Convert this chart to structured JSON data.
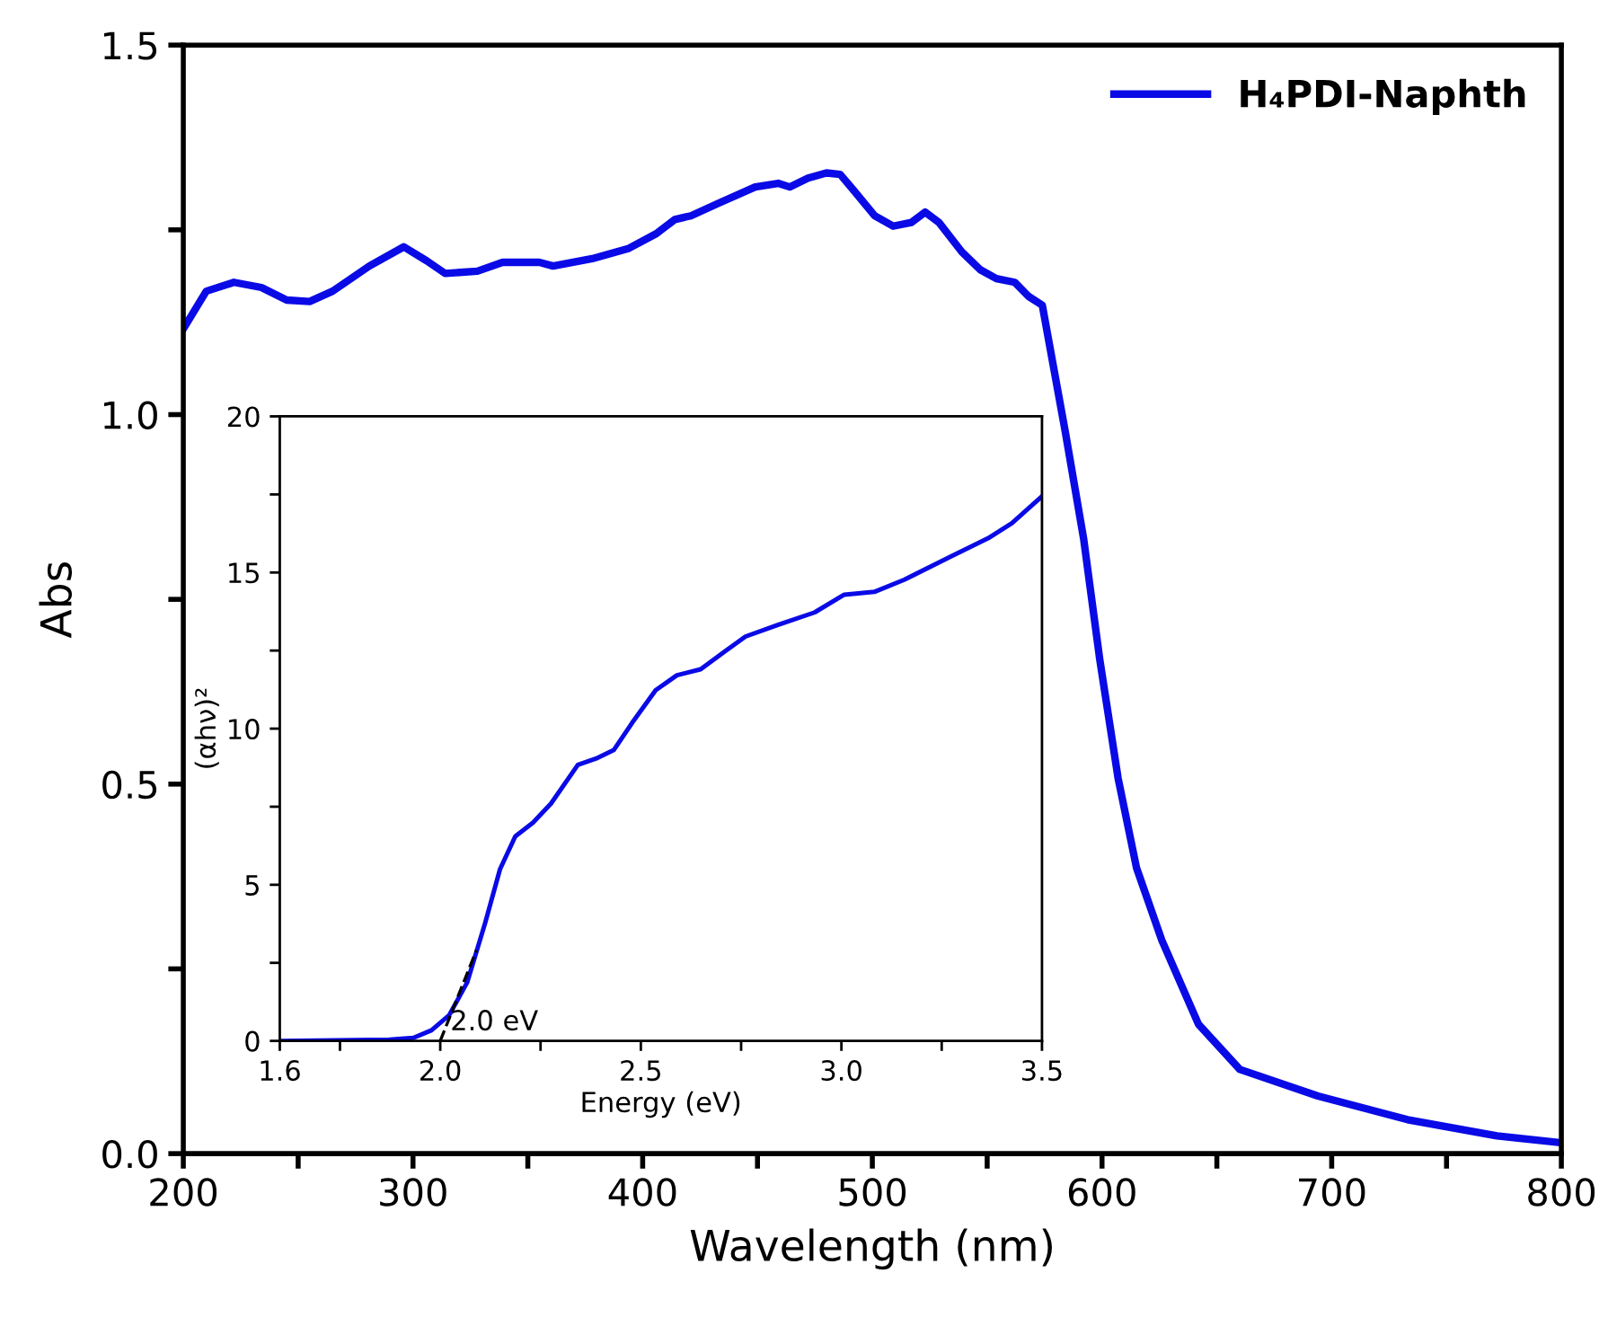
{
  "chart_data": [
    {
      "type": "line",
      "xlabel": "Wavelength (nm)",
      "ylabel": "Abs",
      "xlim": [
        200,
        800
      ],
      "ylim": [
        0,
        1.5
      ],
      "xticks": [
        200,
        {
          "value": 250,
          "label": null
        },
        300,
        {
          "value": 350,
          "label": null
        },
        400,
        {
          "value": 450,
          "label": null
        },
        500,
        {
          "value": 550,
          "label": null
        },
        600,
        {
          "value": 650,
          "label": null
        },
        700,
        {
          "value": 750,
          "label": null
        },
        800
      ],
      "yticks": [
        {
          "value": 0,
          "label": "0.0"
        },
        {
          "value": 0.25,
          "label": null
        },
        {
          "value": 0.5,
          "label": "0.5"
        },
        {
          "value": 0.75,
          "label": null
        },
        {
          "value": 1,
          "label": "1.0"
        },
        {
          "value": 1.25,
          "label": null
        },
        {
          "value": 1.5,
          "label": "1.5"
        }
      ],
      "legend": "top right",
      "series": [
        {
          "name": "H₄PDI-Naphth",
          "color": "#0a0ae6",
          "x": [
            200,
            210,
            222,
            234,
            245,
            255,
            265,
            281,
            296,
            306,
            314,
            328,
            339,
            355,
            361,
            378,
            394,
            406,
            414,
            421,
            433,
            449,
            459,
            464,
            472,
            480,
            486,
            492,
            501,
            509,
            517,
            523,
            529,
            539,
            547,
            554,
            562,
            568,
            574,
            584,
            592,
            599,
            607,
            615,
            626,
            642,
            660,
            694,
            733,
            772,
            799
          ],
          "values": [
            1.116,
            1.167,
            1.179,
            1.172,
            1.155,
            1.153,
            1.167,
            1.201,
            1.227,
            1.208,
            1.191,
            1.194,
            1.206,
            1.206,
            1.201,
            1.211,
            1.225,
            1.245,
            1.264,
            1.269,
            1.286,
            1.308,
            1.313,
            1.308,
            1.32,
            1.327,
            1.325,
            1.303,
            1.269,
            1.255,
            1.26,
            1.274,
            1.26,
            1.22,
            1.196,
            1.184,
            1.179,
            1.16,
            1.148,
            0.977,
            0.832,
            0.669,
            0.508,
            0.387,
            0.289,
            0.175,
            0.114,
            0.078,
            0.046,
            0.024,
            0.015
          ]
        }
      ]
    },
    {
      "type": "line",
      "xlabel": "Energy (eV)",
      "ylabel": "(αhν)²",
      "xlim": [
        1.6,
        3.5
      ],
      "ylim": [
        0,
        20
      ],
      "xticks": [
        1.6,
        {
          "value": 1.75,
          "label": null
        },
        {
          "value": 2.0,
          "label": "2.0"
        },
        {
          "value": 2.25,
          "label": null
        },
        2.5,
        {
          "value": 2.75,
          "label": null
        },
        {
          "value": 3.0,
          "label": "3.0"
        },
        {
          "value": 3.25,
          "label": null
        },
        3.5
      ],
      "yticks": [
        0,
        {
          "value": 2.5,
          "label": null
        },
        5,
        {
          "value": 7.5,
          "label": null
        },
        10,
        {
          "value": 12.5,
          "label": null
        },
        15,
        {
          "value": 17.5,
          "label": null
        },
        20
      ],
      "annotations": [
        {
          "text": "2.0 eV",
          "x": 2.0,
          "y": 0
        }
      ],
      "series": [
        {
          "color": "#0a0ae6",
          "x": [
            1.6,
            1.873,
            1.933,
            1.978,
            2.022,
            2.067,
            2.112,
            2.149,
            2.187,
            2.231,
            2.276,
            2.343,
            2.388,
            2.433,
            2.478,
            2.537,
            2.59,
            2.649,
            2.709,
            2.761,
            2.843,
            2.933,
            3.007,
            3.082,
            3.157,
            3.276,
            3.366,
            3.425,
            3.5
          ],
          "values": [
            0,
            0.04,
            0.1,
            0.34,
            0.82,
            1.87,
            3.78,
            5.5,
            6.55,
            6.99,
            7.6,
            8.84,
            9.04,
            9.32,
            10.18,
            11.23,
            11.71,
            11.9,
            12.47,
            12.95,
            13.33,
            13.72,
            14.29,
            14.38,
            14.77,
            15.53,
            16.1,
            16.58,
            17.44
          ]
        },
        {
          "type": "line",
          "color": "#000000",
          "line_style": "dashed",
          "x": [
            2.0,
            2.09
          ],
          "values": [
            0,
            2.9
          ]
        }
      ]
    }
  ]
}
